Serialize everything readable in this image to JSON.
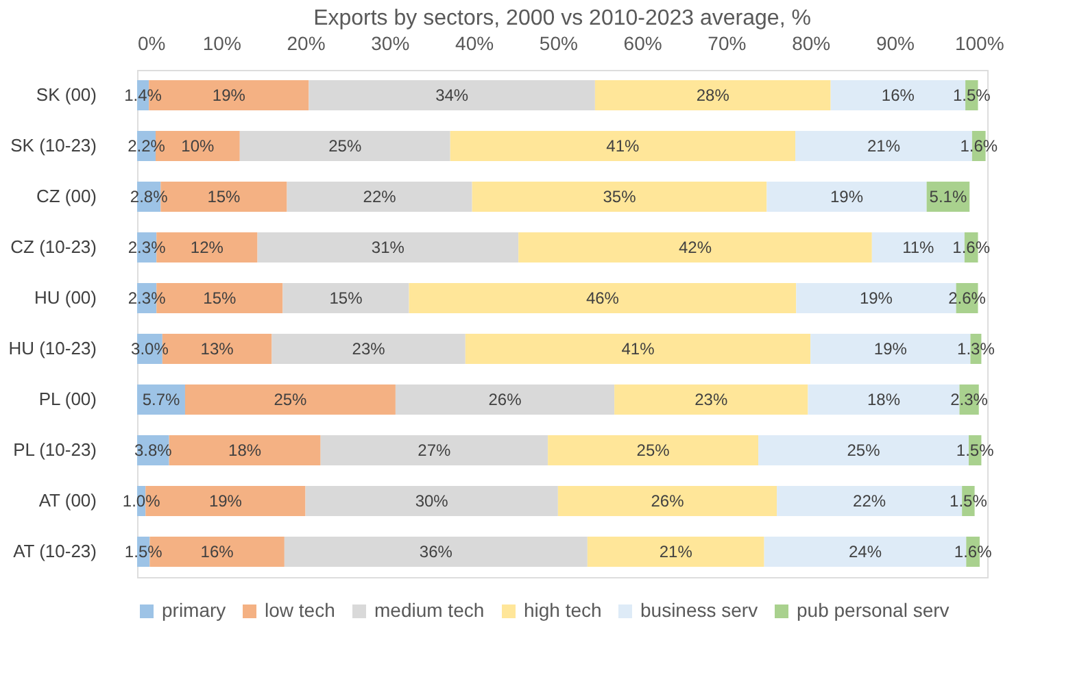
{
  "chart_data": {
    "type": "bar",
    "orientation": "horizontal",
    "stacked": true,
    "title": "Exports by sectors, 2000 vs 2010-2023 average, %",
    "categories": [
      "SK (00)",
      "SK (10-23)",
      "CZ (00)",
      "CZ (10-23)",
      "HU (00)",
      "HU (10-23)",
      "PL (00)",
      "PL (10-23)",
      "AT (00)",
      "AT (10-23)"
    ],
    "series": [
      {
        "name": "primary",
        "color": "#9dc3e6",
        "values": [
          1.4,
          2.2,
          2.8,
          2.3,
          2.3,
          3.0,
          5.7,
          3.8,
          1.0,
          1.5
        ],
        "value_labels": [
          "1.4%",
          "2.2%",
          "2.8%",
          "2.3%",
          "2.3%",
          "3.0%",
          "5.7%",
          "3.8%",
          "1.0%",
          "1.5%"
        ]
      },
      {
        "name": "low tech",
        "color": "#f4b183",
        "values": [
          19,
          10,
          15,
          12,
          15,
          13,
          25,
          18,
          19,
          16
        ],
        "value_labels": [
          "19%",
          "10%",
          "15%",
          "12%",
          "15%",
          "13%",
          "25%",
          "18%",
          "19%",
          "16%"
        ]
      },
      {
        "name": "medium tech",
        "color": "#d9d9d9",
        "values": [
          34,
          25,
          22,
          31,
          15,
          23,
          26,
          27,
          30,
          36
        ],
        "value_labels": [
          "34%",
          "25%",
          "22%",
          "31%",
          "15%",
          "23%",
          "26%",
          "27%",
          "30%",
          "36%"
        ]
      },
      {
        "name": "high tech",
        "color": "#ffe699",
        "values": [
          28,
          41,
          35,
          42,
          46,
          41,
          23,
          25,
          26,
          21
        ],
        "value_labels": [
          "28%",
          "41%",
          "35%",
          "42%",
          "46%",
          "41%",
          "23%",
          "25%",
          "26%",
          "21%"
        ]
      },
      {
        "name": "business serv",
        "color": "#deebf7",
        "values": [
          16,
          21,
          19,
          11,
          19,
          19,
          18,
          25,
          22,
          24
        ],
        "value_labels": [
          "16%",
          "21%",
          "19%",
          "11%",
          "19%",
          "19%",
          "18%",
          "25%",
          "22%",
          "24%"
        ]
      },
      {
        "name": "pub personal serv",
        "color": "#a9d18e",
        "values": [
          1.5,
          1.6,
          5.1,
          1.6,
          2.6,
          1.3,
          2.3,
          1.5,
          1.5,
          1.6
        ],
        "value_labels": [
          "1.5%",
          "1.6%",
          "5.1%",
          "1.6%",
          "2.6%",
          "1.3%",
          "2.3%",
          "1.5%",
          "1.5%",
          "1.6%"
        ]
      }
    ],
    "xlim": [
      0,
      101
    ],
    "xticks": [
      {
        "value": 0,
        "label": "0%"
      },
      {
        "value": 10,
        "label": "10%"
      },
      {
        "value": 20,
        "label": "20%"
      },
      {
        "value": 30,
        "label": "30%"
      },
      {
        "value": 40,
        "label": "40%"
      },
      {
        "value": 50,
        "label": "50%"
      },
      {
        "value": 60,
        "label": "60%"
      },
      {
        "value": 70,
        "label": "70%"
      },
      {
        "value": 80,
        "label": "80%"
      },
      {
        "value": 90,
        "label": "90%"
      },
      {
        "value": 100,
        "label": "100%"
      }
    ],
    "grid": false,
    "legend": "bottom"
  }
}
